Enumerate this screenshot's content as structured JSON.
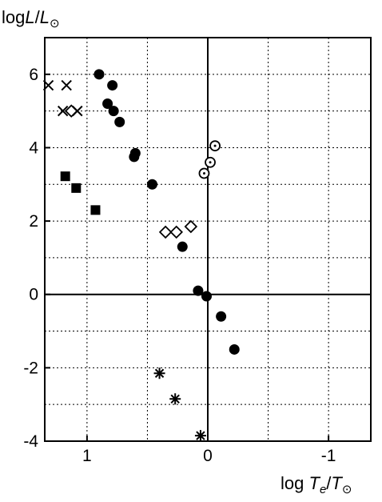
{
  "chart_data": {
    "type": "scatter",
    "ylabel": {
      "prefix": "log",
      "main": "L",
      "slash": "/",
      "sub_main": "L",
      "sub": "⊙"
    },
    "xlabel": {
      "prefix": "log ",
      "main": "T",
      "main_sub": "e",
      "slash": "/",
      "ref": "T",
      "ref_sub": "⊙"
    },
    "x_reversed": true,
    "xlim": [
      1.35,
      -1.35
    ],
    "ylim": [
      -4,
      7
    ],
    "x_ticks": [
      1,
      0,
      -1
    ],
    "x_tick_labels": [
      "1",
      "0",
      "-1"
    ],
    "x_minor_grid": [
      1.0,
      0.5,
      0.0,
      -0.5,
      -1.0
    ],
    "y_ticks": [
      6,
      4,
      2,
      0,
      -2,
      -4
    ],
    "y_tick_labels": [
      "6",
      "4",
      "2",
      "0",
      "-2",
      "-4"
    ],
    "y_grid": [
      6,
      5,
      4,
      3,
      2,
      1,
      0,
      -1,
      -2,
      -3
    ],
    "grid": true,
    "zero_lines": true,
    "series": [
      {
        "marker": "cross",
        "points": [
          [
            1.32,
            5.7
          ],
          [
            1.17,
            5.7
          ],
          [
            1.2,
            5.0
          ],
          [
            1.08,
            5.0
          ]
        ]
      },
      {
        "marker": "open-diamond",
        "points": [
          [
            1.13,
            5.0
          ],
          [
            0.35,
            1.7
          ],
          [
            0.26,
            1.7
          ],
          [
            0.14,
            1.85
          ]
        ]
      },
      {
        "marker": "filled-square",
        "points": [
          [
            1.18,
            3.22
          ],
          [
            1.09,
            2.9
          ],
          [
            0.93,
            2.3
          ]
        ]
      },
      {
        "marker": "filled-circle",
        "points": [
          [
            0.9,
            6.0
          ],
          [
            0.79,
            5.7
          ],
          [
            0.83,
            5.2
          ],
          [
            0.78,
            5.0
          ],
          [
            0.73,
            4.7
          ],
          [
            0.6,
            3.85
          ],
          [
            0.61,
            3.75
          ],
          [
            0.46,
            3.0
          ],
          [
            0.21,
            1.3
          ],
          [
            0.08,
            0.1
          ],
          [
            0.01,
            -0.05
          ],
          [
            -0.11,
            -0.6
          ],
          [
            -0.22,
            -1.5
          ]
        ]
      },
      {
        "marker": "open-circle-dot",
        "points": [
          [
            -0.06,
            4.05
          ],
          [
            -0.02,
            3.6
          ],
          [
            0.03,
            3.3
          ]
        ]
      },
      {
        "marker": "asterisk",
        "points": [
          [
            0.4,
            -2.15
          ],
          [
            0.27,
            -2.85
          ],
          [
            0.06,
            -3.85
          ]
        ]
      }
    ]
  }
}
